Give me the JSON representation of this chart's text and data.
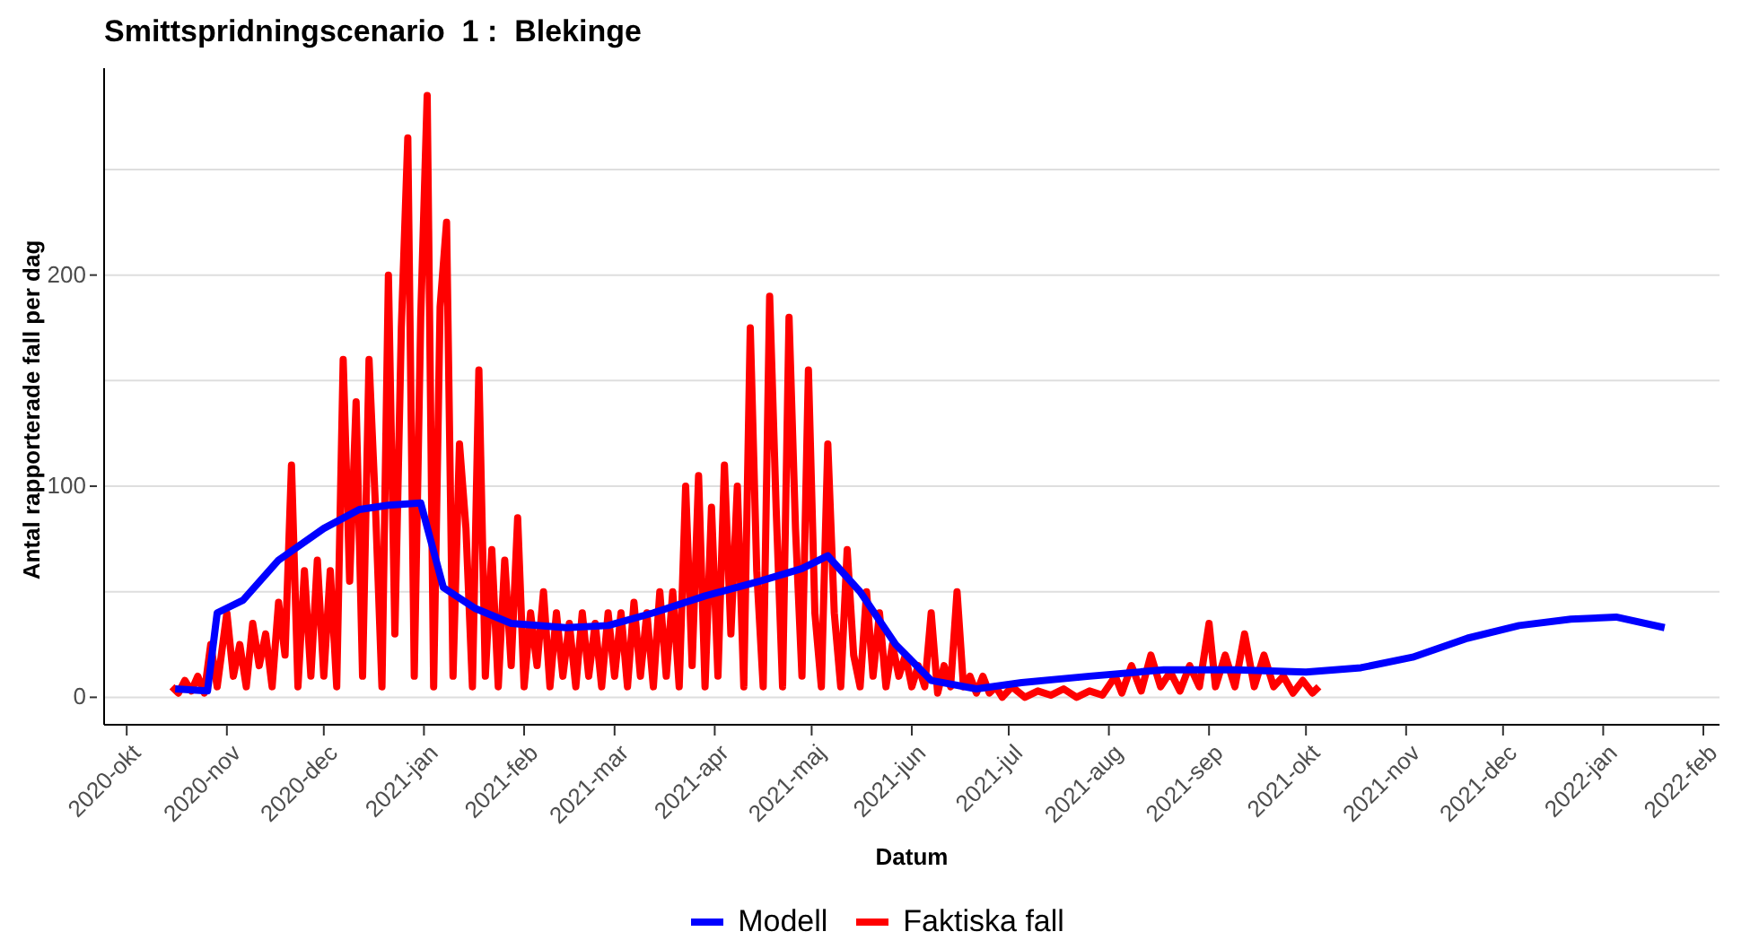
{
  "chart_data": {
    "type": "line",
    "title": "Smittspridningscenario  1 :  Blekinge",
    "xlabel": "Datum",
    "ylabel": "Antal rapporterade fall per dag",
    "xlim": [
      "2020-09-24",
      "2022-02-06"
    ],
    "ylim": [
      -13,
      298
    ],
    "xticks": [
      {
        "value": "2020-10-01",
        "label": "2020-okt"
      },
      {
        "value": "2020-11-01",
        "label": "2020-nov"
      },
      {
        "value": "2020-12-01",
        "label": "2020-dec"
      },
      {
        "value": "2021-01-01",
        "label": "2021-jan"
      },
      {
        "value": "2021-02-01",
        "label": "2021-feb"
      },
      {
        "value": "2021-03-01",
        "label": "2021-mar"
      },
      {
        "value": "2021-04-01",
        "label": "2021-apr"
      },
      {
        "value": "2021-05-01",
        "label": "2021-maj"
      },
      {
        "value": "2021-06-01",
        "label": "2021-jun"
      },
      {
        "value": "2021-07-01",
        "label": "2021-jul"
      },
      {
        "value": "2021-08-01",
        "label": "2021-aug"
      },
      {
        "value": "2021-09-01",
        "label": "2021-sep"
      },
      {
        "value": "2021-10-01",
        "label": "2021-okt"
      },
      {
        "value": "2021-11-01",
        "label": "2021-nov"
      },
      {
        "value": "2021-12-01",
        "label": "2021-dec"
      },
      {
        "value": "2022-01-01",
        "label": "2022-jan"
      },
      {
        "value": "2022-02-01",
        "label": "2022-feb"
      }
    ],
    "yticks": [
      0,
      {
        "value": 50,
        "label": null
      },
      100,
      {
        "value": 150,
        "label": null
      },
      200,
      {
        "value": 250,
        "label": null
      }
    ],
    "grid": "y",
    "legend": "bottom",
    "marker": "none",
    "line_style": "solid",
    "series": [
      {
        "name": "Modell",
        "color": "#0000ff",
        "x": [
          "2020-10-16",
          "2020-10-26",
          "2020-10-29",
          "2020-11-06",
          "2020-11-17",
          "2020-12-01",
          "2020-12-12",
          "2020-12-21",
          "2020-12-31",
          "2021-01-07",
          "2021-01-17",
          "2021-01-28",
          "2021-02-14",
          "2021-02-27",
          "2021-03-13",
          "2021-03-29",
          "2021-04-15",
          "2021-04-28",
          "2021-05-06",
          "2021-05-16",
          "2021-05-27",
          "2021-06-07",
          "2021-06-21",
          "2021-07-05",
          "2021-07-26",
          "2021-08-18",
          "2021-09-09",
          "2021-10-01",
          "2021-10-18",
          "2021-11-03",
          "2021-11-20",
          "2021-12-06",
          "2021-12-22",
          "2022-01-05",
          "2022-01-20"
        ],
        "values": [
          4,
          3,
          40,
          46,
          65,
          80,
          89,
          91,
          92,
          52,
          42,
          35,
          33,
          34,
          40,
          48,
          55,
          61,
          67,
          50,
          25,
          8,
          4,
          7,
          10,
          13,
          13,
          12,
          14,
          19,
          28,
          34,
          37,
          38,
          33
        ]
      },
      {
        "name": "Faktiska fall",
        "color": "#ff0000",
        "x": [
          "2020-10-15",
          "2020-10-17",
          "2020-10-19",
          "2020-10-21",
          "2020-10-23",
          "2020-10-25",
          "2020-10-27",
          "2020-10-29",
          "2020-11-01",
          "2020-11-03",
          "2020-11-05",
          "2020-11-07",
          "2020-11-09",
          "2020-11-11",
          "2020-11-13",
          "2020-11-15",
          "2020-11-17",
          "2020-11-19",
          "2020-11-21",
          "2020-11-23",
          "2020-11-25",
          "2020-11-27",
          "2020-11-29",
          "2020-12-01",
          "2020-12-03",
          "2020-12-05",
          "2020-12-07",
          "2020-12-09",
          "2020-12-11",
          "2020-12-13",
          "2020-12-15",
          "2020-12-17",
          "2020-12-19",
          "2020-12-21",
          "2020-12-23",
          "2020-12-25",
          "2020-12-27",
          "2020-12-29",
          "2020-12-31",
          "2021-01-02",
          "2021-01-04",
          "2021-01-06",
          "2021-01-08",
          "2021-01-10",
          "2021-01-12",
          "2021-01-14",
          "2021-01-16",
          "2021-01-18",
          "2021-01-20",
          "2021-01-22",
          "2021-01-24",
          "2021-01-26",
          "2021-01-28",
          "2021-01-30",
          "2021-02-01",
          "2021-02-03",
          "2021-02-05",
          "2021-02-07",
          "2021-02-09",
          "2021-02-11",
          "2021-02-13",
          "2021-02-15",
          "2021-02-17",
          "2021-02-19",
          "2021-02-21",
          "2021-02-23",
          "2021-02-25",
          "2021-02-27",
          "2021-03-01",
          "2021-03-03",
          "2021-03-05",
          "2021-03-07",
          "2021-03-09",
          "2021-03-11",
          "2021-03-13",
          "2021-03-15",
          "2021-03-17",
          "2021-03-19",
          "2021-03-21",
          "2021-03-23",
          "2021-03-25",
          "2021-03-27",
          "2021-03-29",
          "2021-03-31",
          "2021-04-02",
          "2021-04-04",
          "2021-04-06",
          "2021-04-08",
          "2021-04-10",
          "2021-04-12",
          "2021-04-14",
          "2021-04-16",
          "2021-04-18",
          "2021-04-20",
          "2021-04-22",
          "2021-04-24",
          "2021-04-26",
          "2021-04-28",
          "2021-04-30",
          "2021-05-02",
          "2021-05-04",
          "2021-05-06",
          "2021-05-08",
          "2021-05-10",
          "2021-05-12",
          "2021-05-14",
          "2021-05-16",
          "2021-05-18",
          "2021-05-20",
          "2021-05-22",
          "2021-05-24",
          "2021-05-26",
          "2021-05-28",
          "2021-05-30",
          "2021-06-01",
          "2021-06-03",
          "2021-06-05",
          "2021-06-07",
          "2021-06-09",
          "2021-06-11",
          "2021-06-13",
          "2021-06-15",
          "2021-06-17",
          "2021-06-19",
          "2021-06-21",
          "2021-06-23",
          "2021-06-25",
          "2021-06-27",
          "2021-06-29",
          "2021-07-02",
          "2021-07-06",
          "2021-07-10",
          "2021-07-14",
          "2021-07-18",
          "2021-07-22",
          "2021-07-26",
          "2021-07-30",
          "2021-08-03",
          "2021-08-05",
          "2021-08-08",
          "2021-08-11",
          "2021-08-14",
          "2021-08-17",
          "2021-08-20",
          "2021-08-23",
          "2021-08-26",
          "2021-08-29",
          "2021-09-01",
          "2021-09-03",
          "2021-09-06",
          "2021-09-09",
          "2021-09-12",
          "2021-09-15",
          "2021-09-18",
          "2021-09-21",
          "2021-09-24",
          "2021-09-27",
          "2021-09-30",
          "2021-10-03",
          "2021-10-05"
        ],
        "values": [
          5,
          2,
          8,
          3,
          10,
          2,
          25,
          5,
          40,
          10,
          25,
          5,
          35,
          15,
          30,
          5,
          45,
          20,
          110,
          5,
          60,
          10,
          65,
          10,
          60,
          5,
          160,
          55,
          140,
          10,
          160,
          90,
          5,
          200,
          30,
          175,
          265,
          10,
          180,
          285,
          5,
          185,
          225,
          10,
          120,
          80,
          5,
          155,
          10,
          70,
          5,
          65,
          15,
          85,
          5,
          40,
          15,
          50,
          5,
          40,
          10,
          35,
          5,
          40,
          10,
          35,
          5,
          40,
          10,
          40,
          5,
          45,
          10,
          40,
          5,
          50,
          10,
          50,
          5,
          100,
          15,
          105,
          5,
          90,
          10,
          110,
          30,
          100,
          5,
          175,
          60,
          5,
          190,
          90,
          5,
          180,
          80,
          10,
          155,
          40,
          5,
          120,
          40,
          5,
          70,
          20,
          5,
          50,
          10,
          40,
          5,
          25,
          10,
          20,
          5,
          15,
          5,
          40,
          2,
          15,
          5,
          50,
          5,
          10,
          2,
          10,
          2,
          5,
          0,
          5,
          0,
          3,
          1,
          4,
          0,
          3,
          1,
          10,
          2,
          15,
          3,
          20,
          5,
          12,
          3,
          15,
          5,
          35,
          5,
          20,
          5,
          30,
          5,
          20,
          5,
          10,
          2,
          8,
          2,
          5
        ]
      }
    ]
  }
}
